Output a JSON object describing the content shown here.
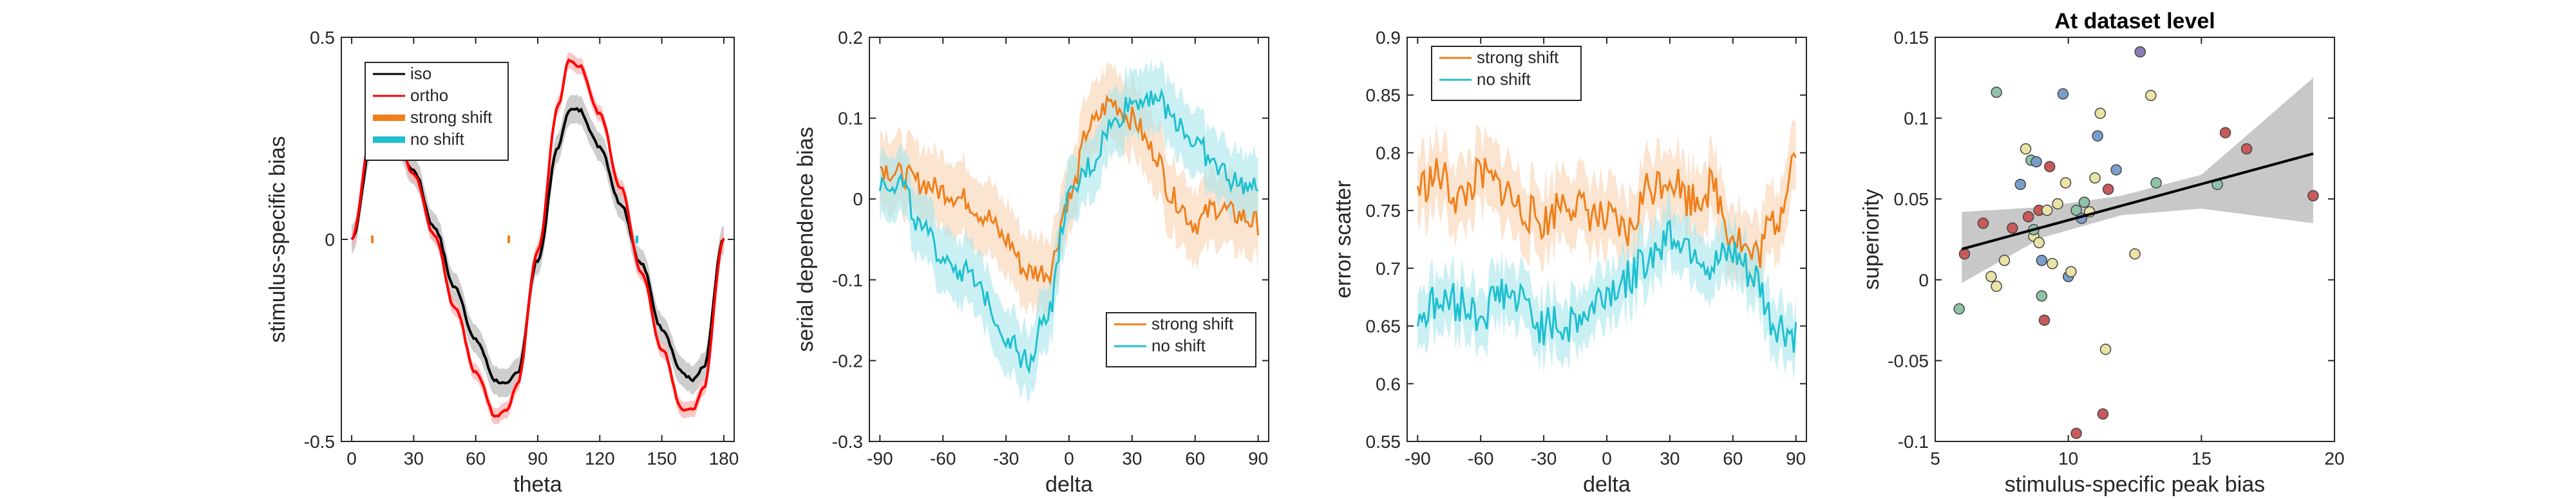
{
  "figure": {
    "colors": {
      "iso": "#000000",
      "ortho": "#ff0000",
      "strong_shift": "#ef7f1a",
      "no_shift": "#1ec0cf",
      "ci": "#c8c8c8"
    }
  },
  "chart_data": [
    {
      "type": "line",
      "title": "",
      "xlabel": "theta",
      "ylabel": "stimulus-specific bias",
      "xlim": [
        -5,
        185
      ],
      "ylim": [
        -0.5,
        0.5
      ],
      "xticks": [
        "0",
        "30",
        "60",
        "90",
        "120",
        "150",
        "180"
      ],
      "yticks": [
        "-0.5",
        "0",
        "0.5"
      ],
      "legend": {
        "position": "top-left",
        "entries": [
          "iso",
          "ortho",
          "strong shift",
          "no shift"
        ]
      },
      "x": [
        0,
        10,
        20,
        30,
        40,
        50,
        60,
        70,
        75,
        80,
        90,
        100,
        105,
        110,
        120,
        130,
        140,
        150,
        160,
        165,
        170,
        180
      ],
      "series": [
        {
          "name": "iso",
          "values": [
            0,
            0.24,
            0.27,
            0.17,
            0.03,
            -0.12,
            -0.25,
            -0.35,
            -0.36,
            -0.33,
            -0.05,
            0.23,
            0.32,
            0.32,
            0.23,
            0.09,
            -0.06,
            -0.22,
            -0.33,
            -0.35,
            -0.32,
            0
          ]
        },
        {
          "name": "ortho",
          "values": [
            0,
            0.27,
            0.29,
            0.16,
            0.01,
            -0.17,
            -0.33,
            -0.44,
            -0.42,
            -0.36,
            -0.03,
            0.33,
            0.44,
            0.43,
            0.31,
            0.13,
            -0.08,
            -0.27,
            -0.42,
            -0.42,
            -0.37,
            0
          ]
        },
        {
          "name": "strong shift",
          "marks": [
            10,
            76
          ]
        },
        {
          "name": "no shift",
          "marks": [
            138
          ]
        }
      ]
    },
    {
      "type": "line",
      "title": "",
      "xlabel": "delta",
      "ylabel": "serial dependence bias",
      "xlim": [
        -95,
        95
      ],
      "ylim": [
        -0.3,
        0.2
      ],
      "xticks": [
        "-90",
        "-60",
        "-30",
        "0",
        "30",
        "60",
        "90"
      ],
      "yticks": [
        "-0.3",
        "-0.2",
        "-0.1",
        "0",
        "0.1",
        "0.2"
      ],
      "legend": {
        "position": "bottom-right",
        "entries": [
          "strong shift",
          "no shift"
        ]
      },
      "x": [
        -90,
        -80,
        -70,
        -60,
        -50,
        -40,
        -30,
        -20,
        -10,
        0,
        10,
        20,
        30,
        40,
        50,
        60,
        70,
        80,
        90
      ],
      "series": [
        {
          "name": "strong shift",
          "values": [
            0.04,
            0.03,
            0.02,
            0.01,
            0.0,
            -0.02,
            -0.05,
            -0.09,
            -0.09,
            0.0,
            0.09,
            0.12,
            0.1,
            0.06,
            0.0,
            -0.03,
            -0.01,
            -0.02,
            -0.03
          ]
        },
        {
          "name": "no shift",
          "values": [
            0.02,
            0.02,
            -0.04,
            -0.07,
            -0.09,
            -0.12,
            -0.17,
            -0.2,
            -0.14,
            0.0,
            0.04,
            0.09,
            0.12,
            0.13,
            0.1,
            0.07,
            0.04,
            0.02,
            0.01
          ]
        }
      ],
      "band_halfwidth": [
        0.045,
        0.04
      ]
    },
    {
      "type": "line",
      "title": "",
      "xlabel": "delta",
      "ylabel": "error scatter",
      "xlim": [
        -95,
        95
      ],
      "ylim": [
        0.55,
        0.9
      ],
      "xticks": [
        "-90",
        "-60",
        "-30",
        "0",
        "30",
        "60",
        "90"
      ],
      "yticks": [
        "0.55",
        "0.6",
        "0.65",
        "0.7",
        "0.75",
        "0.8",
        "0.85",
        "0.9"
      ],
      "legend": {
        "position": "top-left",
        "entries": [
          "strong shift",
          "no shift"
        ]
      },
      "x": [
        -90,
        -80,
        -70,
        -60,
        -50,
        -40,
        -30,
        -20,
        -10,
        0,
        10,
        20,
        30,
        40,
        50,
        60,
        70,
        80,
        90
      ],
      "series": [
        {
          "name": "strong shift",
          "values": [
            0.77,
            0.78,
            0.76,
            0.78,
            0.77,
            0.75,
            0.74,
            0.76,
            0.75,
            0.74,
            0.73,
            0.77,
            0.78,
            0.76,
            0.77,
            0.73,
            0.71,
            0.74,
            0.8
          ]
        },
        {
          "name": "no shift",
          "values": [
            0.66,
            0.67,
            0.67,
            0.66,
            0.68,
            0.67,
            0.65,
            0.65,
            0.66,
            0.68,
            0.69,
            0.71,
            0.73,
            0.72,
            0.7,
            0.71,
            0.69,
            0.65,
            0.64
          ]
        }
      ],
      "band_halfwidth": [
        0.03,
        0.025
      ]
    },
    {
      "type": "scatter",
      "title": "At dataset level",
      "xlabel": "stimulus-specific peak bias",
      "ylabel": "superiority",
      "xlim": [
        5,
        20
      ],
      "ylim": [
        -0.1,
        0.15
      ],
      "xticks": [
        "5",
        "10",
        "15",
        "20"
      ],
      "yticks": [
        "-0.1",
        "-0.05",
        "0",
        "0.05",
        "0.1",
        "0.15"
      ],
      "fit": {
        "x": [
          6,
          19.2
        ],
        "y": [
          0.019,
          0.078
        ]
      },
      "ci_band": {
        "x": [
          6,
          9,
          12,
          15,
          19.2
        ],
        "lower": [
          -0.002,
          0.026,
          0.04,
          0.044,
          0.035
        ],
        "upper": [
          0.042,
          0.045,
          0.052,
          0.065,
          0.125
        ]
      },
      "points": [
        {
          "x": 5.9,
          "y": -0.018,
          "c": "#8fc3a8"
        },
        {
          "x": 6.1,
          "y": 0.016,
          "c": "#c85a5a"
        },
        {
          "x": 6.8,
          "y": 0.035,
          "c": "#c85a5a"
        },
        {
          "x": 7.1,
          "y": 0.002,
          "c": "#e9e3a5"
        },
        {
          "x": 7.3,
          "y": -0.004,
          "c": "#e9e3a5"
        },
        {
          "x": 7.3,
          "y": 0.116,
          "c": "#8fc3a8"
        },
        {
          "x": 7.6,
          "y": 0.012,
          "c": "#e9e3a5"
        },
        {
          "x": 7.9,
          "y": 0.032,
          "c": "#c85a5a"
        },
        {
          "x": 8.2,
          "y": 0.059,
          "c": "#7a9ec9"
        },
        {
          "x": 8.4,
          "y": 0.081,
          "c": "#e9e3a5"
        },
        {
          "x": 8.5,
          "y": 0.039,
          "c": "#c85a5a"
        },
        {
          "x": 8.6,
          "y": 0.074,
          "c": "#8fc3a8"
        },
        {
          "x": 8.7,
          "y": 0.027,
          "c": "#e9e3a5"
        },
        {
          "x": 8.8,
          "y": 0.073,
          "c": "#7a9ec9"
        },
        {
          "x": 8.9,
          "y": 0.023,
          "c": "#e9e3a5"
        },
        {
          "x": 8.9,
          "y": 0.043,
          "c": "#c85a5a"
        },
        {
          "x": 9.0,
          "y": 0.012,
          "c": "#7a9ec9"
        },
        {
          "x": 9.0,
          "y": -0.01,
          "c": "#8fc3a8"
        },
        {
          "x": 9.1,
          "y": -0.025,
          "c": "#c85a5a"
        },
        {
          "x": 9.2,
          "y": 0.043,
          "c": "#e9e3a5"
        },
        {
          "x": 9.3,
          "y": 0.07,
          "c": "#c85a5a"
        },
        {
          "x": 9.4,
          "y": 0.01,
          "c": "#e9e3a5"
        },
        {
          "x": 9.6,
          "y": 0.047,
          "c": "#e9e3a5"
        },
        {
          "x": 9.8,
          "y": 0.115,
          "c": "#7a9ec9"
        },
        {
          "x": 9.9,
          "y": 0.06,
          "c": "#e9e3a5"
        },
        {
          "x": 10.0,
          "y": 0.002,
          "c": "#7a9ec9"
        },
        {
          "x": 10.1,
          "y": 0.005,
          "c": "#e9e3a5"
        },
        {
          "x": 10.3,
          "y": 0.043,
          "c": "#8fc3a8"
        },
        {
          "x": 10.5,
          "y": 0.038,
          "c": "#7a9ec9"
        },
        {
          "x": 10.6,
          "y": 0.048,
          "c": "#8fc3a8"
        },
        {
          "x": 10.8,
          "y": 0.042,
          "c": "#e9e3a5"
        },
        {
          "x": 11.0,
          "y": 0.063,
          "c": "#e9e3a5"
        },
        {
          "x": 11.1,
          "y": 0.089,
          "c": "#7a9ec9"
        },
        {
          "x": 11.2,
          "y": 0.103,
          "c": "#e9e3a5"
        },
        {
          "x": 11.3,
          "y": -0.083,
          "c": "#c85a5a"
        },
        {
          "x": 11.4,
          "y": -0.043,
          "c": "#e9e3a5"
        },
        {
          "x": 11.5,
          "y": 0.056,
          "c": "#c85a5a"
        },
        {
          "x": 11.8,
          "y": 0.068,
          "c": "#7a9ec9"
        },
        {
          "x": 12.5,
          "y": 0.016,
          "c": "#e9e3a5"
        },
        {
          "x": 12.7,
          "y": 0.141,
          "c": "#8e7bb5"
        },
        {
          "x": 13.1,
          "y": 0.114,
          "c": "#e9e3a5"
        },
        {
          "x": 13.3,
          "y": 0.06,
          "c": "#8fc3a8"
        },
        {
          "x": 15.6,
          "y": 0.059,
          "c": "#8fc3a8"
        },
        {
          "x": 15.9,
          "y": 0.091,
          "c": "#c85a5a"
        },
        {
          "x": 16.7,
          "y": 0.081,
          "c": "#c85a5a"
        },
        {
          "x": 19.2,
          "y": 0.052,
          "c": "#c85a5a"
        },
        {
          "x": 10.3,
          "y": -0.095,
          "c": "#c85a5a"
        },
        {
          "x": 8.7,
          "y": 0.031,
          "c": "#8fc3a8"
        }
      ]
    }
  ]
}
